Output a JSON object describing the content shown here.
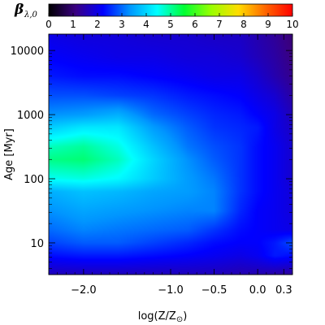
{
  "chart_data": {
    "type": "heatmap",
    "colorbar": {
      "symbol": "β",
      "subscript": "λ,0",
      "range": [
        0,
        10
      ],
      "ticks": [
        0,
        1,
        2,
        3,
        4,
        5,
        6,
        7,
        8,
        9,
        10
      ],
      "colormap_stops": [
        "#000000",
        "#3a0082",
        "#0000ff",
        "#0096ff",
        "#00ffff",
        "#00ff33",
        "#99ff00",
        "#ffdd00",
        "#ff6600",
        "#ff0000"
      ]
    },
    "x_axis": {
      "label": "log(Z/Z",
      "label_sun": "⊙",
      "label_close": ")",
      "range": [
        -2.4,
        0.4
      ],
      "ticks": [
        -2.0,
        -1.0,
        -0.5,
        0.0,
        0.3
      ],
      "tick_labels": [
        "−2.0",
        "−1.0",
        "−0.5",
        "0.0",
        "0.3"
      ]
    },
    "y_axis": {
      "label": "Age [Myr]",
      "scale": "log",
      "range": [
        3.2,
        18000
      ],
      "ticks": [
        10,
        100,
        1000,
        10000
      ],
      "tick_labels": [
        "10",
        "100",
        "1000",
        "10000"
      ]
    },
    "grid": false,
    "z_grid": {
      "x": [
        -2.4,
        -2.0,
        -1.6,
        -1.2,
        -0.8,
        -0.5,
        -0.2,
        0.0,
        0.2,
        0.4
      ],
      "log_age": [
        0.5,
        0.8,
        1.0,
        1.2,
        1.5,
        1.8,
        2.0,
        2.3,
        2.5,
        2.8,
        3.0,
        3.3,
        3.6,
        3.9,
        4.25
      ],
      "values": [
        [
          1.6,
          1.6,
          1.6,
          1.6,
          1.6,
          1.6,
          1.5,
          1.5,
          1.4,
          1.3
        ],
        [
          2.3,
          2.4,
          2.4,
          2.3,
          2.2,
          2.1,
          2.0,
          2.1,
          2.4,
          2.3
        ],
        [
          2.7,
          2.9,
          2.9,
          2.7,
          2.5,
          2.3,
          2.2,
          2.2,
          2.4,
          2.8
        ],
        [
          3.0,
          3.2,
          3.1,
          3.0,
          2.9,
          2.6,
          2.3,
          2.2,
          2.1,
          2.0
        ],
        [
          3.3,
          3.5,
          3.4,
          3.3,
          3.2,
          3.2,
          2.5,
          2.2,
          2.1,
          1.9
        ],
        [
          3.6,
          3.8,
          3.7,
          3.5,
          3.4,
          3.2,
          2.6,
          2.3,
          2.1,
          1.9
        ],
        [
          4.5,
          4.6,
          4.4,
          3.9,
          3.4,
          3.1,
          2.6,
          2.3,
          2.1,
          1.8
        ],
        [
          5.1,
          5.2,
          4.8,
          4.0,
          3.3,
          2.9,
          2.6,
          2.3,
          2.1,
          1.8
        ],
        [
          4.8,
          5.0,
          4.6,
          3.8,
          3.1,
          2.8,
          2.6,
          2.3,
          2.1,
          1.8
        ],
        [
          3.9,
          4.2,
          4.2,
          3.4,
          2.9,
          2.6,
          2.5,
          2.4,
          2.0,
          1.7
        ],
        [
          3.3,
          3.4,
          3.6,
          3.0,
          2.7,
          2.5,
          2.4,
          2.2,
          2.0,
          1.6
        ],
        [
          2.8,
          2.8,
          2.7,
          2.6,
          2.4,
          2.3,
          2.2,
          2.0,
          1.8,
          1.4
        ],
        [
          2.4,
          2.3,
          2.3,
          2.2,
          2.1,
          2.0,
          2.0,
          1.8,
          1.5,
          1.2
        ],
        [
          2.2,
          2.1,
          2.0,
          2.0,
          1.9,
          1.9,
          1.8,
          1.6,
          1.4,
          1.1
        ],
        [
          2.0,
          1.9,
          1.9,
          1.8,
          1.8,
          1.7,
          1.7,
          1.5,
          1.3,
          1.0
        ]
      ]
    }
  }
}
